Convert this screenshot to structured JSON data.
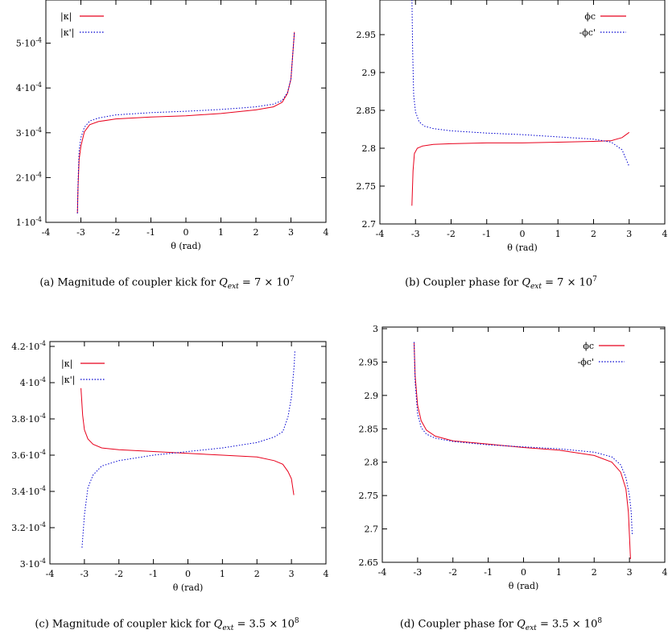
{
  "captions": [
    {
      "label": "(a) Magnitude of coupler kick for",
      "q_sym": "Q",
      "q_sub": "ext",
      "q_eq": " = 7 × 10",
      "q_exp": "7"
    },
    {
      "label": "(b) Coupler phase for",
      "q_sym": "Q",
      "q_sub": "ext",
      "q_eq": " = 7 × 10",
      "q_exp": "7"
    },
    {
      "label": "(c) Magnitude of coupler kick for",
      "q_sym": "Q",
      "q_sub": "ext",
      "q_eq": " = 3.5 × 10",
      "q_exp": "8"
    },
    {
      "label": "(d) Coupler phase for",
      "q_sym": "Q",
      "q_sub": "ext",
      "q_eq": " = 3.5 × 10",
      "q_exp": "8"
    }
  ],
  "colors": {
    "series_solid": "#e8001c",
    "series_dotted": "#0000d0",
    "axis": "#000000"
  },
  "chart_data": [
    {
      "type": "line",
      "xlabel": "θ (rad)",
      "ylabel": "",
      "xlim": [
        -4,
        4
      ],
      "ylim": [
        0.0001,
        0.0006
      ],
      "xticks": [
        -4,
        -3,
        -2,
        -1,
        0,
        1,
        2,
        3,
        4
      ],
      "xtick_labels": [
        "-4",
        "-3",
        "-2",
        "-1",
        "0",
        "1",
        "2",
        "3",
        "4"
      ],
      "yticks": [
        0.0001,
        0.0002,
        0.0003,
        0.0004,
        0.0005
      ],
      "ytick_mantissa": [
        "1·10",
        "2·10",
        "3·10",
        "4·10",
        "5·10"
      ],
      "ytick_exponent": "-4",
      "legend_position": "top-left",
      "series": [
        {
          "name": "|κ|",
          "style": "solid",
          "x": [
            -3.1,
            -3.08,
            -3.05,
            -3.0,
            -2.9,
            -2.75,
            -2.5,
            -2.0,
            -1.0,
            0.0,
            1.0,
            2.0,
            2.5,
            2.75,
            2.9,
            3.0,
            3.1
          ],
          "y": [
            0.00012,
            0.00018,
            0.00024,
            0.00027,
            0.000302,
            0.000318,
            0.000325,
            0.000331,
            0.000335,
            0.000338,
            0.000343,
            0.000351,
            0.000358,
            0.000368,
            0.000388,
            0.00042,
            0.000525
          ]
        },
        {
          "name": "|κ'|",
          "style": "dotted",
          "x": [
            -3.1,
            -3.08,
            -3.05,
            -3.0,
            -2.9,
            -2.75,
            -2.5,
            -2.0,
            -1.0,
            0.0,
            1.0,
            2.0,
            2.5,
            2.75,
            2.9,
            3.0,
            3.1
          ],
          "y": [
            0.00012,
            0.00019,
            0.00026,
            0.000289,
            0.000312,
            0.000326,
            0.000333,
            0.00034,
            0.000345,
            0.000348,
            0.000352,
            0.000358,
            0.000364,
            0.000372,
            0.00039,
            0.00042,
            0.000525
          ]
        }
      ]
    },
    {
      "type": "line",
      "xlabel": "θ (rad)",
      "ylabel": "",
      "xlim": [
        -4,
        4
      ],
      "ylim": [
        2.7,
        3.0
      ],
      "xticks": [
        -4,
        -3,
        -2,
        -1,
        0,
        1,
        2,
        3,
        4
      ],
      "xtick_labels": [
        "-4",
        "-3",
        "-2",
        "-1",
        "0",
        "1",
        "2",
        "3",
        "4"
      ],
      "yticks": [
        2.7,
        2.75,
        2.8,
        2.85,
        2.9,
        2.95
      ],
      "ytick_labels": [
        "2.7",
        "2.75",
        "2.8",
        "2.85",
        "2.9",
        "2.95"
      ],
      "legend_position": "top-right",
      "series": [
        {
          "name": "ϕc",
          "style": "solid",
          "x": [
            -3.1,
            -3.07,
            -3.03,
            -2.95,
            -2.8,
            -2.5,
            -2.0,
            -1.0,
            0.0,
            1.0,
            2.0,
            2.5,
            2.8,
            3.0
          ],
          "y": [
            2.724,
            2.77,
            2.793,
            2.8,
            2.803,
            2.805,
            2.806,
            2.807,
            2.807,
            2.808,
            2.809,
            2.81,
            2.814,
            2.821
          ]
        },
        {
          "name": "-ϕc'",
          "style": "dotted",
          "x": [
            -3.1,
            -3.08,
            -3.05,
            -3.0,
            -2.9,
            -2.75,
            -2.5,
            -2.0,
            -1.0,
            0.0,
            1.0,
            2.0,
            2.5,
            2.8,
            3.0
          ],
          "y": [
            3.0,
            2.93,
            2.87,
            2.848,
            2.835,
            2.829,
            2.826,
            2.823,
            2.82,
            2.818,
            2.815,
            2.812,
            2.808,
            2.798,
            2.776
          ]
        }
      ]
    },
    {
      "type": "line",
      "xlabel": "θ (rad)",
      "ylabel": "",
      "xlim": [
        -4,
        4
      ],
      "ylim": [
        0.0003,
        0.00042
      ],
      "xticks": [
        -4,
        -3,
        -2,
        -1,
        0,
        1,
        2,
        3,
        4
      ],
      "xtick_labels": [
        "-4",
        "-3",
        "-2",
        "-1",
        "0",
        "1",
        "2",
        "3",
        "4"
      ],
      "yticks": [
        0.0003,
        0.00032,
        0.00034,
        0.00036,
        0.00038,
        0.0004,
        0.00042
      ],
      "ytick_mantissa": [
        "3·10",
        "3.2·10",
        "3.4·10",
        "3.6·10",
        "3.8·10",
        "4·10",
        "4.2·10"
      ],
      "ytick_exponent": "-4",
      "legend_position": "top-left",
      "series": [
        {
          "name": "|κ|",
          "style": "solid",
          "x": [
            -3.1,
            -3.05,
            -3.0,
            -2.9,
            -2.75,
            -2.5,
            -2.0,
            -1.0,
            0.0,
            1.0,
            2.0,
            2.5,
            2.75,
            2.9,
            3.0,
            3.07
          ],
          "y": [
            0.000397,
            0.000382,
            0.000374,
            0.000369,
            0.000366,
            0.000364,
            0.000363,
            0.000362,
            0.000361,
            0.00036,
            0.000359,
            0.000357,
            0.000355,
            0.000351,
            0.000347,
            0.000338
          ]
        },
        {
          "name": "|κ'|",
          "style": "dotted",
          "x": [
            -3.07,
            -3.0,
            -2.9,
            -2.75,
            -2.5,
            -2.0,
            -1.0,
            0.0,
            1.0,
            2.0,
            2.5,
            2.75,
            2.9,
            3.0,
            3.08,
            3.1
          ],
          "y": [
            0.000309,
            0.000327,
            0.000342,
            0.000349,
            0.000354,
            0.000357,
            0.00036,
            0.000362,
            0.000364,
            0.000367,
            0.00037,
            0.000373,
            0.000381,
            0.000392,
            0.00041,
            0.000418
          ]
        }
      ]
    },
    {
      "type": "line",
      "xlabel": "θ (rad)",
      "ylabel": "",
      "xlim": [
        -4,
        4
      ],
      "ylim": [
        2.65,
        3.0
      ],
      "xticks": [
        -4,
        -3,
        -2,
        -1,
        0,
        1,
        2,
        3,
        4
      ],
      "xtick_labels": [
        "-4",
        "-3",
        "-2",
        "-1",
        "0",
        "1",
        "2",
        "3",
        "4"
      ],
      "yticks": [
        2.65,
        2.7,
        2.75,
        2.8,
        2.85,
        2.9,
        2.95,
        3.0
      ],
      "ytick_labels": [
        "2.65",
        "2.7",
        "2.75",
        "2.8",
        "2.85",
        "2.9",
        "2.95",
        "3"
      ],
      "legend_position": "top-right",
      "series": [
        {
          "name": "ϕc",
          "style": "solid",
          "x": [
            -3.1,
            -3.07,
            -3.0,
            -2.9,
            -2.75,
            -2.5,
            -2.0,
            -1.0,
            0.0,
            1.0,
            2.0,
            2.5,
            2.75,
            2.9,
            2.97,
            3.0,
            3.03
          ],
          "y": [
            2.98,
            2.93,
            2.885,
            2.862,
            2.848,
            2.839,
            2.832,
            2.827,
            2.822,
            2.818,
            2.81,
            2.8,
            2.785,
            2.76,
            2.725,
            2.69,
            2.655
          ]
        },
        {
          "name": "-ϕc'",
          "style": "dotted",
          "x": [
            -3.1,
            -3.07,
            -3.0,
            -2.9,
            -2.75,
            -2.5,
            -2.0,
            -1.0,
            0.0,
            1.0,
            2.0,
            2.5,
            2.75,
            2.9,
            3.0,
            3.05,
            3.08
          ],
          "y": [
            2.98,
            2.92,
            2.872,
            2.852,
            2.842,
            2.836,
            2.831,
            2.826,
            2.823,
            2.82,
            2.815,
            2.808,
            2.796,
            2.777,
            2.75,
            2.725,
            2.69
          ]
        }
      ]
    }
  ]
}
